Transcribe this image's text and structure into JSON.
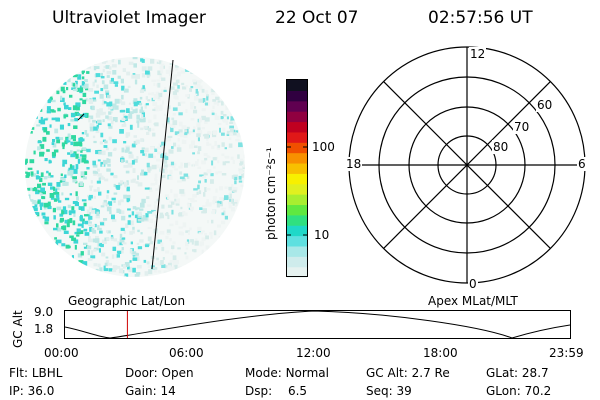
{
  "header": {
    "instrument": "Ultraviolet Imager",
    "date": "22 Oct 07",
    "time": "02:57:56 UT"
  },
  "colorbar": {
    "label": "photon cm⁻²s⁻¹",
    "ticks": [
      "100",
      "10"
    ],
    "colors": [
      "#e6f2f0",
      "#cfecec",
      "#a8e8e8",
      "#5fe0e0",
      "#20d8c8",
      "#30e080",
      "#60e840",
      "#a8ee30",
      "#e0f020",
      "#f8f000",
      "#f8c000",
      "#f89000",
      "#f05000",
      "#e01818",
      "#c00020",
      "#900040",
      "#600050",
      "#300040",
      "#101020"
    ]
  },
  "polar_plot": {
    "mlt_labels": [
      "12",
      "18",
      "6",
      "0"
    ],
    "mlat_labels": [
      "60",
      "70",
      "80"
    ]
  },
  "timeline": {
    "left_title": "Geographic Lat/Lon",
    "right_title": "Apex MLat/MLT",
    "axis_label": "GC Alt",
    "y_ticks": [
      "9.0",
      "1.8"
    ],
    "x_ticks": [
      "00:00",
      "06:00",
      "12:00",
      "18:00",
      "23:59"
    ],
    "current_time_hours": 2.966
  },
  "status": {
    "row1": [
      {
        "key": "Flt:",
        "value": "LBHL"
      },
      {
        "key": "Door:",
        "value": "Open"
      },
      {
        "key": "Mode:",
        "value": "Normal"
      },
      {
        "key": "GC Alt:",
        "value": "2.7 Re"
      },
      {
        "key": "GLat:",
        "value": "28.7"
      }
    ],
    "row2": [
      {
        "key": "IP:",
        "value": "36.0"
      },
      {
        "key": "Gain:",
        "value": "14"
      },
      {
        "key": "Dsp:",
        "value": "6.5"
      },
      {
        "key": "Seq:",
        "value": "39"
      },
      {
        "key": "GLon:",
        "value": "70.2"
      }
    ]
  }
}
